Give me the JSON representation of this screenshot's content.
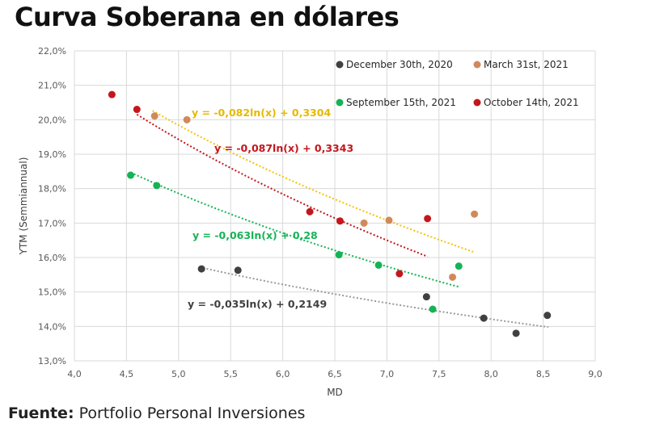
{
  "title": "Curva Soberana en dólares",
  "footer": {
    "label": "Fuente:",
    "text": " Portfolio Personal Inversiones"
  },
  "chart_data": {
    "type": "scatter",
    "xlabel": "MD",
    "ylabel": "YTM (Semmiannual)",
    "xlim": [
      4.0,
      9.0
    ],
    "ylim": [
      0.13,
      0.22
    ],
    "xticks": [
      4.0,
      4.5,
      5.0,
      5.5,
      6.0,
      6.5,
      7.0,
      7.5,
      8.0,
      8.5,
      9.0
    ],
    "xtick_labels": [
      "4,0",
      "4,5",
      "5,0",
      "5,5",
      "6,0",
      "6,5",
      "7,0",
      "7,5",
      "8,0",
      "8,5",
      "9,0"
    ],
    "yticks": [
      0.13,
      0.14,
      0.15,
      0.16,
      0.17,
      0.18,
      0.19,
      0.2,
      0.21,
      0.22
    ],
    "ytick_labels": [
      "13,0%",
      "14,0%",
      "15,0%",
      "16,0%",
      "17,0%",
      "18,0%",
      "19,0%",
      "20,0%",
      "21,0%",
      "22,0%"
    ],
    "grid": true,
    "legend_position": "top-right",
    "series": [
      {
        "name": "December 30th, 2020",
        "color": "#404040",
        "trend_color": "#9a9a9a",
        "points": [
          [
            5.22,
            0.1567
          ],
          [
            5.57,
            0.1563
          ],
          [
            7.38,
            0.1486
          ],
          [
            7.93,
            0.1424
          ],
          [
            8.24,
            0.138
          ],
          [
            8.54,
            0.1432
          ]
        ],
        "trendline": {
          "a": -0.035,
          "b": 0.2149,
          "x_range": [
            5.2,
            8.55
          ]
        },
        "equation": "y = -0,035ln(x) + 0,2149"
      },
      {
        "name": "March 31st, 2021",
        "color": "#d08a5a",
        "trend_color": "#f2c40f",
        "points": [
          [
            4.77,
            0.2011
          ],
          [
            5.08,
            0.2
          ],
          [
            6.78,
            0.17
          ],
          [
            7.02,
            0.1708
          ],
          [
            7.63,
            0.1543
          ],
          [
            7.84,
            0.1726
          ]
        ],
        "trendline": {
          "a": -0.082,
          "b": 0.3304,
          "x_range": [
            4.75,
            7.84
          ]
        },
        "equation": "y = -0,082ln(x) + 0,3304"
      },
      {
        "name": "September 15th, 2021",
        "color": "#16b356",
        "trend_color": "#16b356",
        "points": [
          [
            4.54,
            0.1839
          ],
          [
            4.79,
            0.1809
          ],
          [
            6.54,
            0.1608
          ],
          [
            6.92,
            0.1578
          ],
          [
            7.44,
            0.145
          ],
          [
            7.69,
            0.1575
          ]
        ],
        "trendline": {
          "a": -0.063,
          "b": 0.28,
          "x_range": [
            4.54,
            7.69
          ]
        },
        "equation": "y = -0,063ln(x) + 0,28"
      },
      {
        "name": "October 14th, 2021",
        "color": "#c4161c",
        "trend_color": "#c4161c",
        "points": [
          [
            4.36,
            0.2073
          ],
          [
            4.6,
            0.203
          ],
          [
            6.26,
            0.1733
          ],
          [
            6.55,
            0.1706
          ],
          [
            7.12,
            0.1553
          ],
          [
            7.39,
            0.1713
          ]
        ],
        "trendline": {
          "a": -0.087,
          "b": 0.3343,
          "x_range": [
            4.6,
            7.39
          ]
        },
        "equation": "y = -0,087ln(x) + 0,3343"
      }
    ]
  }
}
